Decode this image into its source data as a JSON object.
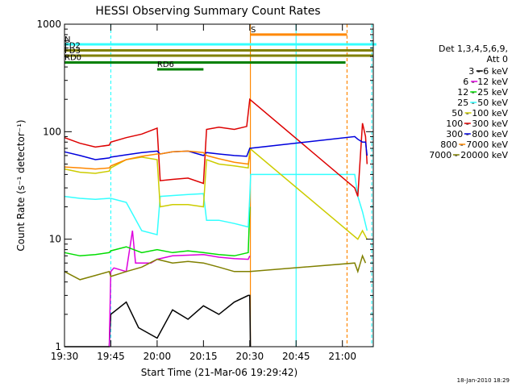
{
  "chart_data": {
    "type": "line",
    "title": "HESSI Observing Summary Count Rates",
    "xlabel": "Start Time (21-Mar-06 19:29:42)",
    "ylabel": "Count Rate (s⁻¹ detector⁻¹)",
    "x_range_minutes": [
      0,
      100
    ],
    "x_ticks": [
      {
        "label": "19:30",
        "minute": 0
      },
      {
        "label": "19:45",
        "minute": 15
      },
      {
        "label": "20:00",
        "minute": 30
      },
      {
        "label": "20:15",
        "minute": 45
      },
      {
        "label": "20:30",
        "minute": 60
      },
      {
        "label": "20:45",
        "minute": 75
      },
      {
        "label": "21:00",
        "minute": 90
      }
    ],
    "y_scale": "log",
    "ylim": [
      1,
      1000
    ],
    "y_ticks": [
      {
        "label": "1",
        "value": 1
      },
      {
        "label": "10",
        "value": 10
      },
      {
        "label": "100",
        "value": 100
      },
      {
        "label": "1000",
        "value": 1000
      }
    ],
    "legend": {
      "placement": "right",
      "header": [
        "Det 1,3,4,5,6,9,",
        "Att 0"
      ],
      "entries": [
        {
          "label": "3 - 6 keV",
          "color": "#000000"
        },
        {
          "label": "6 - 12 keV",
          "color": "#dd00dd"
        },
        {
          "label": "12 - 25 keV",
          "color": "#00dd00"
        },
        {
          "label": "25 - 50 keV",
          "color": "#33ffff"
        },
        {
          "label": "50 - 100 keV",
          "color": "#cccc00"
        },
        {
          "label": "100 - 300 keV",
          "color": "#dd0000"
        },
        {
          "label": "300 - 800 keV",
          "color": "#0000dd"
        },
        {
          "label": "800 - 7000 keV",
          "color": "#ff8800"
        },
        {
          "label": "7000 - 20000 keV",
          "color": "#808000"
        }
      ]
    },
    "series": [
      {
        "name": "3 - 6 keV",
        "color": "#000000",
        "points": [
          [
            0,
            1
          ],
          [
            14.5,
            1
          ],
          [
            15,
            2
          ],
          [
            20,
            2.6
          ],
          [
            24,
            1.5
          ],
          [
            30,
            1.2
          ],
          [
            35,
            2.2
          ],
          [
            40,
            1.8
          ],
          [
            45,
            2.4
          ],
          [
            50,
            2
          ],
          [
            55,
            2.6
          ],
          [
            59.5,
            3
          ],
          [
            60,
            3
          ],
          [
            60.2,
            1
          ]
        ]
      },
      {
        "name": "6 - 12 keV",
        "color": "#dd00dd",
        "points": [
          [
            14.5,
            1
          ],
          [
            15,
            5
          ],
          [
            16,
            5.4
          ],
          [
            20,
            5
          ],
          [
            22,
            12
          ],
          [
            23,
            6
          ],
          [
            28,
            6
          ],
          [
            30,
            6.5
          ],
          [
            35,
            7
          ],
          [
            45,
            7.2
          ],
          [
            50,
            6.8
          ],
          [
            55,
            6.6
          ],
          [
            59.5,
            6.5
          ],
          [
            60,
            7
          ]
        ]
      },
      {
        "name": "12 - 25 keV",
        "color": "#00dd00",
        "points": [
          [
            0,
            7.5
          ],
          [
            5,
            7
          ],
          [
            10,
            7.2
          ],
          [
            14.5,
            7.5
          ],
          [
            15,
            7.8
          ],
          [
            20,
            8.5
          ],
          [
            25,
            7.5
          ],
          [
            30,
            8
          ],
          [
            35,
            7.5
          ],
          [
            40,
            7.8
          ],
          [
            45,
            7.5
          ],
          [
            50,
            7.2
          ],
          [
            55,
            7
          ],
          [
            59.5,
            7.5
          ],
          [
            60,
            20
          ]
        ]
      },
      {
        "name": "25 - 50 keV",
        "color": "#33ffff",
        "points": [
          [
            0,
            25
          ],
          [
            5,
            24
          ],
          [
            10,
            23.5
          ],
          [
            14.5,
            24
          ],
          [
            15,
            24
          ],
          [
            20,
            22
          ],
          [
            25,
            12
          ],
          [
            30,
            11
          ],
          [
            31,
            25
          ],
          [
            40,
            26
          ],
          [
            45,
            26.5
          ],
          [
            46,
            15
          ],
          [
            50,
            15
          ],
          [
            55,
            14
          ],
          [
            59.5,
            13
          ],
          [
            60,
            25
          ],
          [
            60.3,
            40
          ],
          [
            94,
            40
          ],
          [
            95,
            25
          ],
          [
            96.5,
            18
          ],
          [
            98,
            12
          ]
        ]
      },
      {
        "name": "50 - 100 keV",
        "color": "#cccc00",
        "points": [
          [
            0,
            45
          ],
          [
            5,
            42
          ],
          [
            10,
            41
          ],
          [
            14.5,
            43
          ],
          [
            15,
            46
          ],
          [
            20,
            55
          ],
          [
            25,
            58
          ],
          [
            30,
            55
          ],
          [
            31,
            20
          ],
          [
            35,
            21
          ],
          [
            40,
            21
          ],
          [
            45,
            20
          ],
          [
            46,
            55
          ],
          [
            50,
            50
          ],
          [
            55,
            48
          ],
          [
            59.5,
            46
          ],
          [
            60,
            70
          ],
          [
            95,
            10
          ],
          [
            96.5,
            12
          ],
          [
            98,
            10
          ]
        ]
      },
      {
        "name": "100 - 300 keV",
        "color": "#dd0000",
        "points": [
          [
            0,
            88
          ],
          [
            5,
            78
          ],
          [
            10,
            72
          ],
          [
            14.5,
            75
          ],
          [
            15,
            80
          ],
          [
            20,
            88
          ],
          [
            25,
            95
          ],
          [
            30,
            108
          ],
          [
            31,
            35
          ],
          [
            35,
            36
          ],
          [
            40,
            37
          ],
          [
            45,
            33
          ],
          [
            46,
            105
          ],
          [
            50,
            110
          ],
          [
            55,
            105
          ],
          [
            59,
            112
          ],
          [
            60,
            200
          ],
          [
            94,
            30
          ],
          [
            95,
            25
          ],
          [
            96.5,
            120
          ],
          [
            97.5,
            90
          ],
          [
            98,
            50
          ]
        ]
      },
      {
        "name": "300 - 800 keV",
        "color": "#0000dd",
        "points": [
          [
            0,
            65
          ],
          [
            5,
            60
          ],
          [
            10,
            55
          ],
          [
            14.5,
            57
          ],
          [
            15,
            58
          ],
          [
            20,
            61
          ],
          [
            25,
            64
          ],
          [
            30,
            66
          ],
          [
            31,
            62
          ],
          [
            35,
            65
          ],
          [
            40,
            66
          ],
          [
            45,
            60
          ],
          [
            46,
            64
          ],
          [
            50,
            62
          ],
          [
            55,
            60
          ],
          [
            59,
            59
          ],
          [
            60,
            70
          ],
          [
            94,
            90
          ],
          [
            95,
            85
          ],
          [
            96.5,
            80
          ],
          [
            97.5,
            80
          ],
          [
            98,
            60
          ]
        ]
      },
      {
        "name": "800 - 7000 keV",
        "color": "#ff8800",
        "points": [
          [
            0,
            47
          ],
          [
            5,
            46
          ],
          [
            10,
            45
          ],
          [
            14.5,
            46
          ],
          [
            15,
            48
          ],
          [
            20,
            55
          ],
          [
            25,
            59
          ],
          [
            30,
            62
          ],
          [
            31,
            62
          ],
          [
            35,
            65
          ],
          [
            40,
            66
          ],
          [
            45,
            64
          ],
          [
            46,
            60
          ],
          [
            50,
            56
          ],
          [
            55,
            52
          ],
          [
            59.5,
            50
          ],
          [
            60,
            60
          ]
        ]
      },
      {
        "name": "7000 - 20000 keV",
        "color": "#808000",
        "points": [
          [
            0,
            5
          ],
          [
            5,
            4.2
          ],
          [
            10,
            4.6
          ],
          [
            14.5,
            5
          ],
          [
            15,
            4.5
          ],
          [
            20,
            5
          ],
          [
            25,
            5.5
          ],
          [
            30,
            6.5
          ],
          [
            35,
            6
          ],
          [
            40,
            6.2
          ],
          [
            45,
            6
          ],
          [
            50,
            5.5
          ],
          [
            55,
            5
          ],
          [
            59.5,
            5
          ],
          [
            60,
            5
          ],
          [
            94,
            6
          ],
          [
            95,
            5
          ],
          [
            96.5,
            7
          ],
          [
            97.5,
            6
          ]
        ]
      }
    ],
    "segments": [
      {
        "label": "N",
        "color": "#33ffff",
        "x_start": 0,
        "x_end": 101,
        "value": 650
      },
      {
        "label": "S",
        "color": "#ff8800",
        "x_start": 60.3,
        "x_end": 91.5,
        "value": 800
      },
      {
        "label": "FD2",
        "color": "#808000",
        "x_start": 0,
        "x_end": 100,
        "value": 570
      },
      {
        "label": "FD3",
        "color": "#808000",
        "x_start": 0,
        "x_end": 100,
        "value": 510
      },
      {
        "label": "RD0",
        "color": "#008000",
        "x_start": 0,
        "x_end": 91,
        "value": 440
      },
      {
        "label": "RD6",
        "color": "#008000",
        "x_start": 30,
        "x_end": 45,
        "value": 380
      }
    ],
    "vertical_markers": [
      {
        "x": 15,
        "color": "#33ffff",
        "style": "dashed"
      },
      {
        "x": 60.2,
        "color": "#ff8800",
        "style": "solid"
      },
      {
        "x": 75,
        "color": "#33ffff",
        "style": "solid"
      },
      {
        "x": 91.5,
        "color": "#ff8800",
        "style": "dashed"
      },
      {
        "x": 99.5,
        "color": "#33ffff",
        "style": "dashed"
      }
    ],
    "footer": "18-Jan-2010 18:29"
  }
}
